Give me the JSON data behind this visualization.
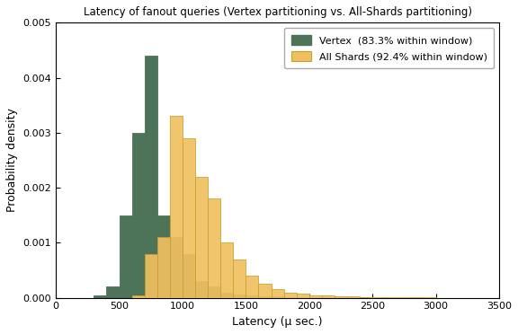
{
  "title": "Latency of fanout queries (Vertex partitioning vs. All-Shards partitioning)",
  "xlabel": "Latency (μ sec.)",
  "ylabel": "Probability density",
  "xlim": [
    0,
    3500
  ],
  "ylim": [
    0,
    0.005
  ],
  "yticks": [
    0.0,
    0.001,
    0.002,
    0.003,
    0.004,
    0.005
  ],
  "xticks": [
    0,
    500,
    1000,
    1500,
    2000,
    2500,
    3000,
    3500
  ],
  "vertex_color": "#4d7358",
  "allshards_color": "#f0c060",
  "allshards_edge_color": "#c8a030",
  "vertex_label": "Vertex  (83.3% within window)",
  "allshards_label": "All Shards (92.4% within window)",
  "bin_width": 100,
  "vertex_data": [
    [
      300,
      5e-05
    ],
    [
      400,
      0.0002
    ],
    [
      500,
      0.0015
    ],
    [
      600,
      0.003
    ],
    [
      700,
      0.0044
    ],
    [
      800,
      0.0015
    ],
    [
      900,
      0.0011
    ],
    [
      1000,
      0.0008
    ],
    [
      1100,
      0.0003
    ],
    [
      1200,
      0.0002
    ],
    [
      1300,
      0.0001
    ],
    [
      1400,
      6e-05
    ],
    [
      1500,
      4e-05
    ],
    [
      1600,
      3e-05
    ],
    [
      1700,
      2e-05
    ],
    [
      1800,
      1.5e-05
    ],
    [
      1900,
      1e-05
    ],
    [
      2000,
      8e-06
    ],
    [
      2100,
      6e-06
    ],
    [
      2200,
      5e-06
    ],
    [
      2300,
      4e-06
    ],
    [
      2400,
      3e-06
    ],
    [
      2500,
      2e-06
    ],
    [
      2600,
      1.5e-06
    ],
    [
      2700,
      1.2e-06
    ],
    [
      2800,
      1e-06
    ],
    [
      2900,
      8e-07
    ],
    [
      3000,
      5e-07
    ],
    [
      3100,
      3e-07
    ],
    [
      3200,
      2e-07
    ],
    [
      3300,
      1e-07
    ]
  ],
  "allshards_data": [
    [
      600,
      5e-05
    ],
    [
      700,
      0.0008
    ],
    [
      800,
      0.0011
    ],
    [
      900,
      0.0033
    ],
    [
      1000,
      0.0029
    ],
    [
      1100,
      0.0022
    ],
    [
      1200,
      0.0018
    ],
    [
      1300,
      0.001
    ],
    [
      1400,
      0.0007
    ],
    [
      1500,
      0.0004
    ],
    [
      1600,
      0.00025
    ],
    [
      1700,
      0.00015
    ],
    [
      1800,
      0.0001
    ],
    [
      1900,
      7e-05
    ],
    [
      2000,
      5e-05
    ],
    [
      2100,
      4e-05
    ],
    [
      2200,
      3e-05
    ],
    [
      2300,
      2e-05
    ],
    [
      2400,
      1.5e-05
    ],
    [
      2500,
      1e-05
    ],
    [
      2600,
      8e-06
    ],
    [
      2700,
      6e-06
    ],
    [
      2800,
      4e-06
    ],
    [
      2900,
      3e-06
    ],
    [
      3000,
      2e-06
    ],
    [
      3100,
      1.5e-06
    ],
    [
      3200,
      1e-06
    ],
    [
      3300,
      5e-07
    ]
  ]
}
